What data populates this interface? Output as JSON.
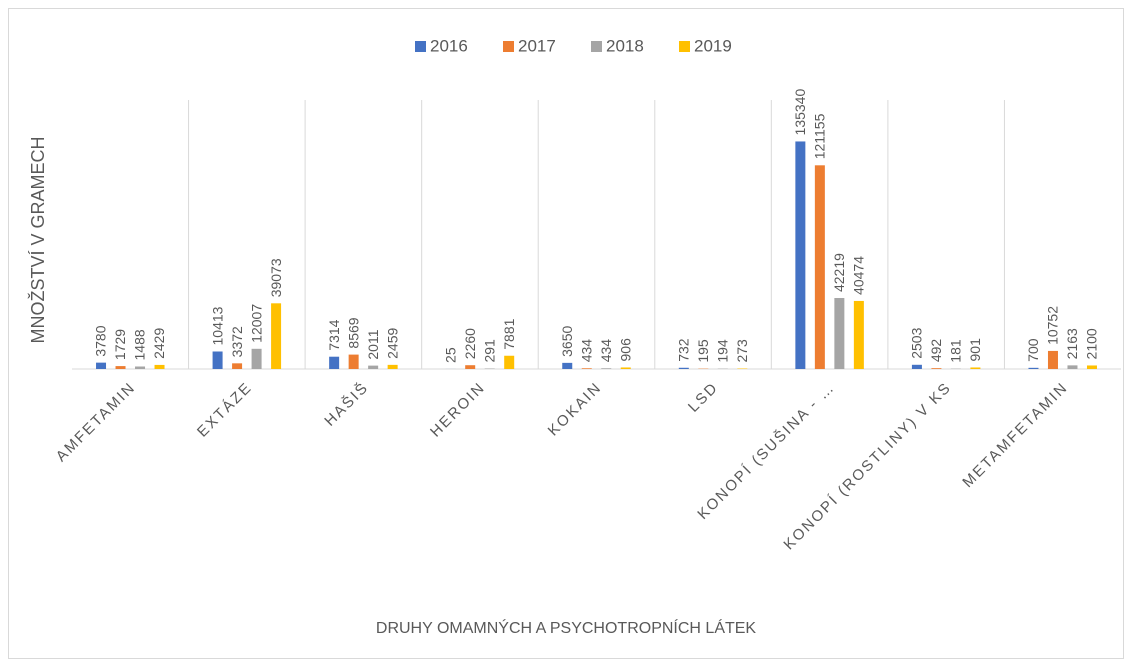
{
  "chart_data": {
    "type": "bar",
    "x_label": "DRUHY OMAMNÝCH A PSYCHOTROPNÍCH LÁTEK",
    "y_label": "MNOŽSTVÍ V GRAMECH",
    "categories": [
      "AMFETAMIN",
      "EXTÁZE",
      "HAŠIŠ",
      "HEROIN",
      "KOKAIN",
      "LSD",
      "KONOPÍ (SUŠINA - …",
      "KONOPÍ (ROSTLINY) V KS",
      "METAMFETAMIN"
    ],
    "series": [
      {
        "name": "2016",
        "color": "#4472c4",
        "values": [
          3780,
          10413,
          7314,
          25,
          3650,
          732,
          135340,
          2503,
          700
        ]
      },
      {
        "name": "2017",
        "color": "#ed7d31",
        "values": [
          1729,
          3372,
          8569,
          2260,
          434,
          195,
          121155,
          492,
          10752
        ]
      },
      {
        "name": "2018",
        "color": "#a5a5a5",
        "values": [
          1488,
          12007,
          2011,
          291,
          434,
          194,
          42219,
          181,
          2163
        ]
      },
      {
        "name": "2019",
        "color": "#ffc000",
        "values": [
          2429,
          39073,
          2459,
          7881,
          906,
          273,
          40474,
          901,
          2100
        ]
      }
    ],
    "ylim": [
      0,
      160000
    ],
    "legend": "top"
  }
}
